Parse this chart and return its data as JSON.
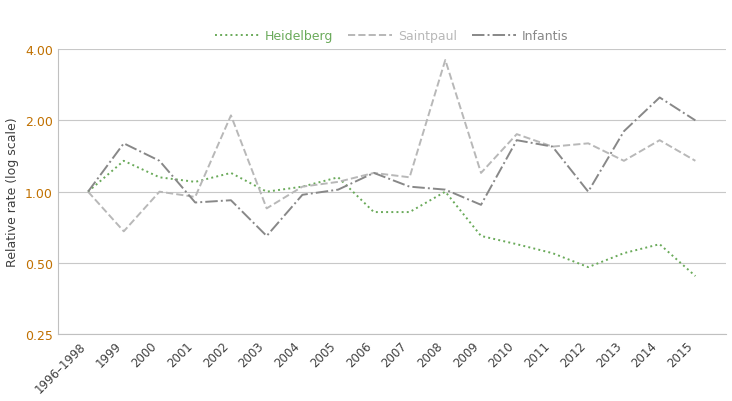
{
  "years": [
    "1996–1998",
    "1999",
    "2000",
    "2001",
    "2002",
    "2003",
    "2004",
    "2005",
    "2006",
    "2007",
    "2008",
    "2009",
    "2010",
    "2011",
    "2012",
    "2013",
    "2014",
    "2015"
  ],
  "heidelberg": [
    1.0,
    1.35,
    1.15,
    1.1,
    1.2,
    1.0,
    1.05,
    1.15,
    0.82,
    0.82,
    1.0,
    0.65,
    0.6,
    0.55,
    0.48,
    0.55,
    0.6,
    0.44
  ],
  "saintpaul": [
    1.0,
    0.68,
    1.0,
    0.95,
    2.1,
    0.85,
    1.05,
    1.1,
    1.2,
    1.15,
    3.6,
    1.2,
    1.75,
    1.55,
    1.6,
    1.35,
    1.65,
    1.35
  ],
  "infantis": [
    1.0,
    1.6,
    1.35,
    0.9,
    0.92,
    0.65,
    0.97,
    1.02,
    1.2,
    1.05,
    1.02,
    0.88,
    1.65,
    1.55,
    1.0,
    1.8,
    2.5,
    2.0
  ],
  "heidelberg_color": "#6aaa5a",
  "saintpaul_color": "#b8b8b8",
  "infantis_color": "#888888",
  "ylabel": "Relative rate (log scale)",
  "legend_labels": [
    "Heidelberg",
    "Saintpaul",
    "Infantis"
  ],
  "ylim_log": [
    0.25,
    4.0
  ],
  "yticks": [
    0.25,
    0.5,
    1.0,
    2.0,
    4.0
  ],
  "ytick_labels": [
    "0.25",
    "0.50",
    "1.00",
    "2.00",
    "4.00"
  ],
  "background_color": "#ffffff",
  "grid_color": "#c8c8c8",
  "spine_color": "#c0c0c0",
  "tick_label_color": "#404040",
  "ytick_color": "#c07000",
  "ylabel_color": "#404040"
}
